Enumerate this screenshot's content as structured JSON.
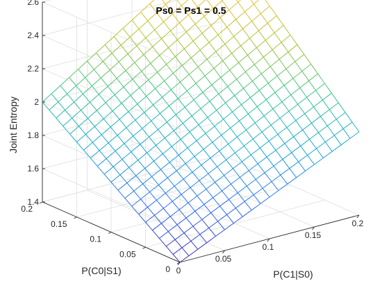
{
  "chart_data": {
    "type": "surface",
    "title": "Ps0 = Ps1 = 0.5",
    "xlabel": "P(C1|S0)",
    "ylabel": "P(C0|S1)",
    "zlabel": "Joint Entropy",
    "xlim": [
      0,
      0.2
    ],
    "ylim": [
      0,
      0.2
    ],
    "zlim": [
      1.4,
      2.6
    ],
    "x_ticks": [
      "0",
      "0.05",
      "0.1",
      "0.15",
      "0.2"
    ],
    "y_ticks": [
      "0",
      "0.05",
      "0.1",
      "0.15",
      "0.2"
    ],
    "z_ticks": [
      "1.4",
      "1.6",
      "1.8",
      "2",
      "2.2",
      "2.4",
      "2.6"
    ],
    "x_tick_values": [
      0,
      0.05,
      0.1,
      0.15,
      0.2
    ],
    "y_tick_values": [
      0,
      0.05,
      0.1,
      0.15,
      0.2
    ],
    "z_tick_values": [
      1.4,
      1.6,
      1.8,
      2.0,
      2.2,
      2.4,
      2.6
    ],
    "grid": true,
    "colormap": [
      "#3e26a8",
      "#2f6ffb",
      "#16a8d6",
      "#35c590",
      "#a9c431",
      "#f4c133",
      "#f9fb15"
    ],
    "mesh_steps": 20,
    "corner_values": {
      "z_at_x0_y0": 1.4,
      "z_at_x02_y0": 1.9,
      "z_at_x0_y02": 2.0,
      "z_at_x02_y02": 2.7
    }
  }
}
